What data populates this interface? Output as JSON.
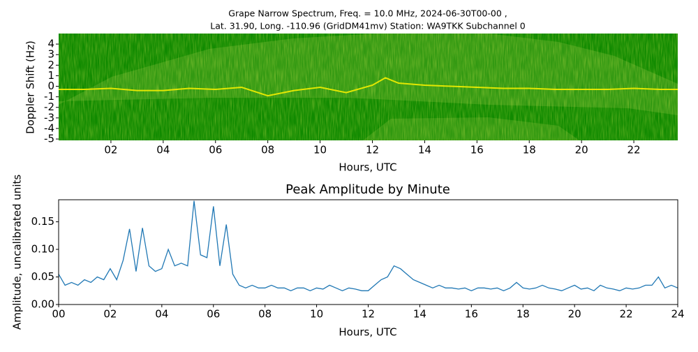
{
  "chart_data": [
    {
      "type": "spectrogram",
      "title": [
        "Grape Narrow Spectrum, Freq. = 10.0 MHz, 2024-06-30T00-00 ,",
        "Lat.  31.90, Long. -110.96 (GridDM41mv) Station: WA9TKK Subchannel 0"
      ],
      "xlabel": "Hours, UTC",
      "ylabel": "Doppler Shift (Hz)",
      "xlim": [
        0,
        23.68
      ],
      "ylim": [
        -5.13,
        5
      ],
      "xticks": [
        {
          "value": 2,
          "label": "02"
        },
        {
          "value": 4,
          "label": "04"
        },
        {
          "value": 6,
          "label": "06"
        },
        {
          "value": 8,
          "label": "08"
        },
        10,
        12,
        14,
        16,
        18,
        20,
        22
      ],
      "yticks": [
        -5,
        -4,
        -3,
        -2,
        -1,
        0,
        1,
        2,
        3,
        4
      ],
      "color": "#f4f000",
      "x": [
        0,
        1,
        2,
        3,
        4,
        5,
        6,
        7,
        8,
        9,
        10,
        11,
        12,
        12.5,
        13,
        13.5,
        14,
        15,
        16,
        17,
        18,
        19,
        20,
        21,
        22,
        23,
        23.68
      ],
      "values": [
        -0.3,
        -0.3,
        -0.2,
        -0.4,
        -0.4,
        -0.2,
        -0.3,
        -0.1,
        -0.9,
        -0.4,
        -0.1,
        -0.6,
        0.1,
        0.8,
        0.3,
        0.2,
        0.1,
        0,
        -0.1,
        -0.2,
        -0.2,
        -0.3,
        -0.3,
        -0.3,
        -0.2,
        -0.3,
        -0.3
      ]
    },
    {
      "type": "line",
      "title": "Peak Amplitude by Minute",
      "xlabel": "Hours, UTC",
      "ylabel": "Amplitude, uncalibrated units",
      "xlim": [
        0,
        24
      ],
      "ylim": [
        0,
        0.19
      ],
      "xticks": [
        {
          "value": 0,
          "label": "00"
        },
        {
          "value": 2,
          "label": "02"
        },
        {
          "value": 4,
          "label": "04"
        },
        {
          "value": 6,
          "label": "06"
        },
        {
          "value": 8,
          "label": "08"
        },
        10,
        12,
        14,
        16,
        18,
        20,
        22,
        24
      ],
      "yticks": [
        {
          "value": 0,
          "label": "0.00"
        },
        {
          "value": 0.05,
          "label": "0.05"
        },
        {
          "value": 0.1,
          "label": "0.10"
        },
        {
          "value": 0.15,
          "label": "0.15"
        }
      ],
      "color": "#1f77b4",
      "x": [
        0,
        0.25,
        0.5,
        0.75,
        1,
        1.25,
        1.5,
        1.75,
        2,
        2.25,
        2.5,
        2.75,
        3,
        3.25,
        3.5,
        3.75,
        4,
        4.25,
        4.5,
        4.75,
        5,
        5.25,
        5.5,
        5.75,
        6,
        6.25,
        6.5,
        6.75,
        7,
        7.25,
        7.5,
        7.75,
        8,
        8.25,
        8.5,
        8.75,
        9,
        9.25,
        9.5,
        9.75,
        10,
        10.25,
        10.5,
        10.75,
        11,
        11.25,
        11.5,
        11.75,
        12,
        12.25,
        12.5,
        12.75,
        13,
        13.25,
        13.5,
        13.75,
        14,
        14.25,
        14.5,
        14.75,
        15,
        15.25,
        15.5,
        15.75,
        16,
        16.25,
        16.5,
        16.75,
        17,
        17.25,
        17.5,
        17.75,
        18,
        18.25,
        18.5,
        18.75,
        19,
        19.25,
        19.5,
        19.75,
        20,
        20.25,
        20.5,
        20.75,
        21,
        21.25,
        21.5,
        21.75,
        22,
        22.25,
        22.5,
        22.75,
        23,
        23.25,
        23.5,
        23.75,
        24
      ],
      "values": [
        0.055,
        0.035,
        0.04,
        0.035,
        0.045,
        0.04,
        0.05,
        0.045,
        0.065,
        0.045,
        0.08,
        0.137,
        0.06,
        0.139,
        0.07,
        0.06,
        0.065,
        0.1,
        0.07,
        0.075,
        0.07,
        0.188,
        0.09,
        0.085,
        0.178,
        0.07,
        0.145,
        0.055,
        0.035,
        0.03,
        0.035,
        0.03,
        0.03,
        0.035,
        0.03,
        0.03,
        0.025,
        0.03,
        0.03,
        0.025,
        0.03,
        0.028,
        0.035,
        0.03,
        0.025,
        0.03,
        0.028,
        0.025,
        0.025,
        0.035,
        0.045,
        0.05,
        0.07,
        0.065,
        0.055,
        0.045,
        0.04,
        0.035,
        0.03,
        0.035,
        0.03,
        0.03,
        0.028,
        0.03,
        0.025,
        0.03,
        0.03,
        0.028,
        0.03,
        0.025,
        0.03,
        0.04,
        0.03,
        0.028,
        0.03,
        0.035,
        0.03,
        0.028,
        0.025,
        0.03,
        0.035,
        0.028,
        0.03,
        0.025,
        0.035,
        0.03,
        0.028,
        0.025,
        0.03,
        0.028,
        0.03,
        0.035,
        0.035,
        0.05,
        0.03,
        0.035,
        0.03
      ]
    }
  ]
}
